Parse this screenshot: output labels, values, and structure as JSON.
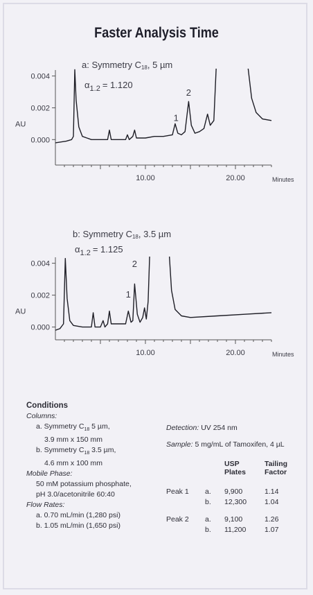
{
  "title": "Faster Analysis Time",
  "chart_data": [
    {
      "type": "line",
      "label_parts": [
        "a: Symmetry C",
        "18",
        ", 5 µm"
      ],
      "alpha_label": "α",
      "alpha_sub": "1.2",
      "alpha_value": "= 1.120",
      "ylabel": "AU",
      "xlabel": "Minutes",
      "x_range": [
        0,
        24
      ],
      "y_range": [
        -0.0016,
        0.0042
      ],
      "y_ticks": [
        0,
        0.002,
        0.004
      ],
      "y_tick_labels": [
        "0.000",
        "0.002",
        "0.004"
      ],
      "x_ticks": [
        10,
        20
      ],
      "x_tick_labels": [
        "10.00",
        "20.00"
      ],
      "peak_labels": [
        {
          "label": "1",
          "x": 13.4,
          "y": 0.0009
        },
        {
          "label": "2",
          "x": 14.8,
          "y": 0.0025
        }
      ],
      "trace_segments": [
        [
          [
            0,
            -0.0002
          ],
          [
            1.2,
            -0.0001
          ],
          [
            1.8,
            0.0
          ],
          [
            2.0,
            0.0002
          ],
          [
            2.15,
            0.0044
          ],
          [
            2.3,
            0.0025
          ],
          [
            2.6,
            0.0008
          ],
          [
            3.0,
            0.0002
          ],
          [
            3.5,
            0.0001
          ],
          [
            4,
            0.0
          ],
          [
            5,
            0.0
          ],
          [
            5.8,
            0.0
          ],
          [
            6.0,
            0.0006
          ],
          [
            6.2,
            0.0
          ],
          [
            7,
            0.0
          ],
          [
            7.8,
            0.0
          ],
          [
            8.0,
            0.0003
          ],
          [
            8.2,
            0.0
          ],
          [
            8.6,
            0.0002
          ],
          [
            8.8,
            0.0006
          ],
          [
            9.0,
            0.0001
          ],
          [
            10,
            0.0001
          ],
          [
            11,
            0.0002
          ],
          [
            12,
            0.0002
          ],
          [
            13.0,
            0.0003
          ],
          [
            13.3,
            0.001
          ],
          [
            13.6,
            0.0004
          ],
          [
            14.0,
            0.0003
          ],
          [
            14.4,
            0.0005
          ],
          [
            14.8,
            0.0024
          ],
          [
            15.1,
            0.0009
          ],
          [
            15.5,
            0.0004
          ],
          [
            16.0,
            0.0005
          ],
          [
            16.5,
            0.0007
          ],
          [
            16.9,
            0.0016
          ],
          [
            17.2,
            0.0009
          ],
          [
            17.6,
            0.0012
          ],
          [
            17.9,
            0.005
          ]
        ],
        [
          [
            21.3,
            0.005
          ],
          [
            21.8,
            0.0026
          ],
          [
            22.3,
            0.0017
          ],
          [
            23,
            0.0013
          ],
          [
            24,
            0.0012
          ]
        ]
      ]
    },
    {
      "type": "line",
      "label_parts": [
        "b: Symmetry C",
        "18",
        ", 3.5 µm"
      ],
      "alpha_label": "α",
      "alpha_sub": "1.2",
      "alpha_value": "= 1.125",
      "ylabel": "AU",
      "xlabel": "Minutes",
      "x_range": [
        0,
        24
      ],
      "y_range": [
        -0.0008,
        0.0042
      ],
      "y_ticks": [
        0,
        0.002,
        0.004
      ],
      "y_tick_labels": [
        "0.000",
        "0.002",
        "0.004"
      ],
      "x_ticks": [
        10,
        20
      ],
      "x_tick_labels": [
        "10.00",
        "20.00"
      ],
      "peak_labels": [
        {
          "label": "1",
          "x": 8.1,
          "y": 0.0016
        },
        {
          "label": "2",
          "x": 8.8,
          "y": 0.0035
        }
      ],
      "trace_segments": [
        [
          [
            0,
            -0.0002
          ],
          [
            0.5,
            -0.0001
          ],
          [
            0.9,
            0.0002
          ],
          [
            1.1,
            0.0043
          ],
          [
            1.3,
            0.0018
          ],
          [
            1.6,
            0.0004
          ],
          [
            2.0,
            0.0001
          ],
          [
            3,
            0.0
          ],
          [
            4,
            0.0
          ],
          [
            4.2,
            0.0009
          ],
          [
            4.4,
            0.0
          ],
          [
            5,
            0.0
          ],
          [
            5.3,
            0.0004
          ],
          [
            5.5,
            0.0
          ],
          [
            5.8,
            0.0002
          ],
          [
            6.0,
            0.001
          ],
          [
            6.2,
            0.0002
          ],
          [
            7,
            0.0002
          ],
          [
            7.8,
            0.0002
          ],
          [
            8.1,
            0.001
          ],
          [
            8.4,
            0.0003
          ],
          [
            8.6,
            0.0004
          ],
          [
            8.8,
            0.0027
          ],
          [
            9.1,
            0.0008
          ],
          [
            9.4,
            0.0003
          ],
          [
            9.7,
            0.0006
          ],
          [
            9.9,
            0.0012
          ],
          [
            10.1,
            0.0005
          ],
          [
            10.3,
            0.0016
          ],
          [
            10.5,
            0.005
          ]
        ],
        [
          [
            12.6,
            0.005
          ],
          [
            12.9,
            0.0023
          ],
          [
            13.3,
            0.0011
          ],
          [
            14,
            0.0007
          ],
          [
            15,
            0.0006
          ],
          [
            18,
            0.0007
          ],
          [
            21,
            0.0008
          ],
          [
            24,
            0.0009
          ]
        ]
      ]
    }
  ],
  "conditions": {
    "heading": "Conditions",
    "columns_label": "Columns:",
    "column_a_parts": [
      "a. Symmetry C",
      "18",
      " 5 µm,"
    ],
    "column_a_dims": "3.9 mm x 150 mm",
    "column_b_parts": [
      "b. Symmetry C",
      "18",
      " 3.5 µm,"
    ],
    "column_b_dims": "4.6 mm x 100 mm",
    "mobile_label": "Mobile Phase:",
    "mobile_line1": "50 mM potassium phosphate,",
    "mobile_line2": "pH 3.0/acetonitrile 60:40",
    "flow_label": "Flow Rates:",
    "flow_a": "a. 0.70 mL/min (1,280 psi)",
    "flow_b": "b. 1.05 mL/min (1,650 psi)",
    "detection_label": "Detection:",
    "detection_value": "UV 254 nm",
    "sample_label": "Sample:",
    "sample_value": "5 mg/mL of Tamoxifen, 4 µL"
  },
  "results_table": {
    "headers": [
      "USP Plates",
      "Tailing Factor"
    ],
    "header_lines": [
      [
        "USP",
        "Plates"
      ],
      [
        "Tailing",
        "Factor"
      ]
    ],
    "rows": [
      {
        "peak": "Peak 1",
        "col": "a.",
        "plates": "9,900",
        "tailing": "1.14"
      },
      {
        "peak": "",
        "col": "b.",
        "plates": "12,300",
        "tailing": "1.04"
      },
      {
        "peak": "Peak 2",
        "col": "a.",
        "plates": "9,100",
        "tailing": "1.26"
      },
      {
        "peak": "",
        "col": "b.",
        "plates": "11,200",
        "tailing": "1.07"
      }
    ]
  }
}
